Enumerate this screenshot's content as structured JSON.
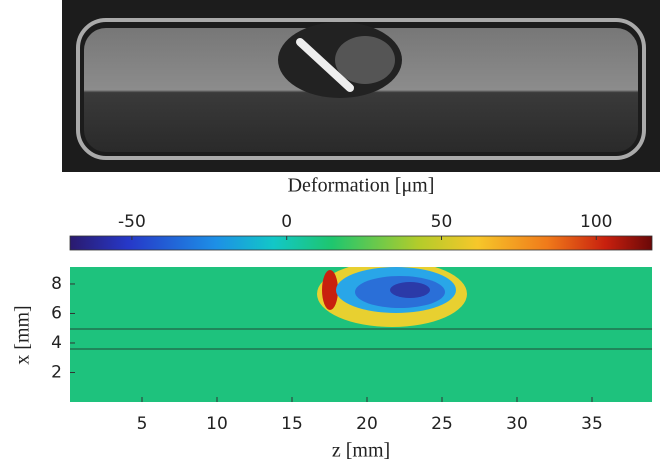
{
  "chart_data": {
    "type": "heatmap",
    "colorbar": {
      "label": "Deformation [μm]",
      "lim": [
        -70,
        118
      ],
      "ticks": [
        -50,
        0,
        50,
        100
      ]
    },
    "xlabel": "z [mm]",
    "ylabel": "x [mm]",
    "xlim": [
      0.2,
      39
    ],
    "xticks": [
      5,
      10,
      15,
      20,
      25,
      30,
      35
    ],
    "ylim": [
      0,
      9.15
    ],
    "yticks": [
      2,
      4,
      6,
      8
    ]
  }
}
